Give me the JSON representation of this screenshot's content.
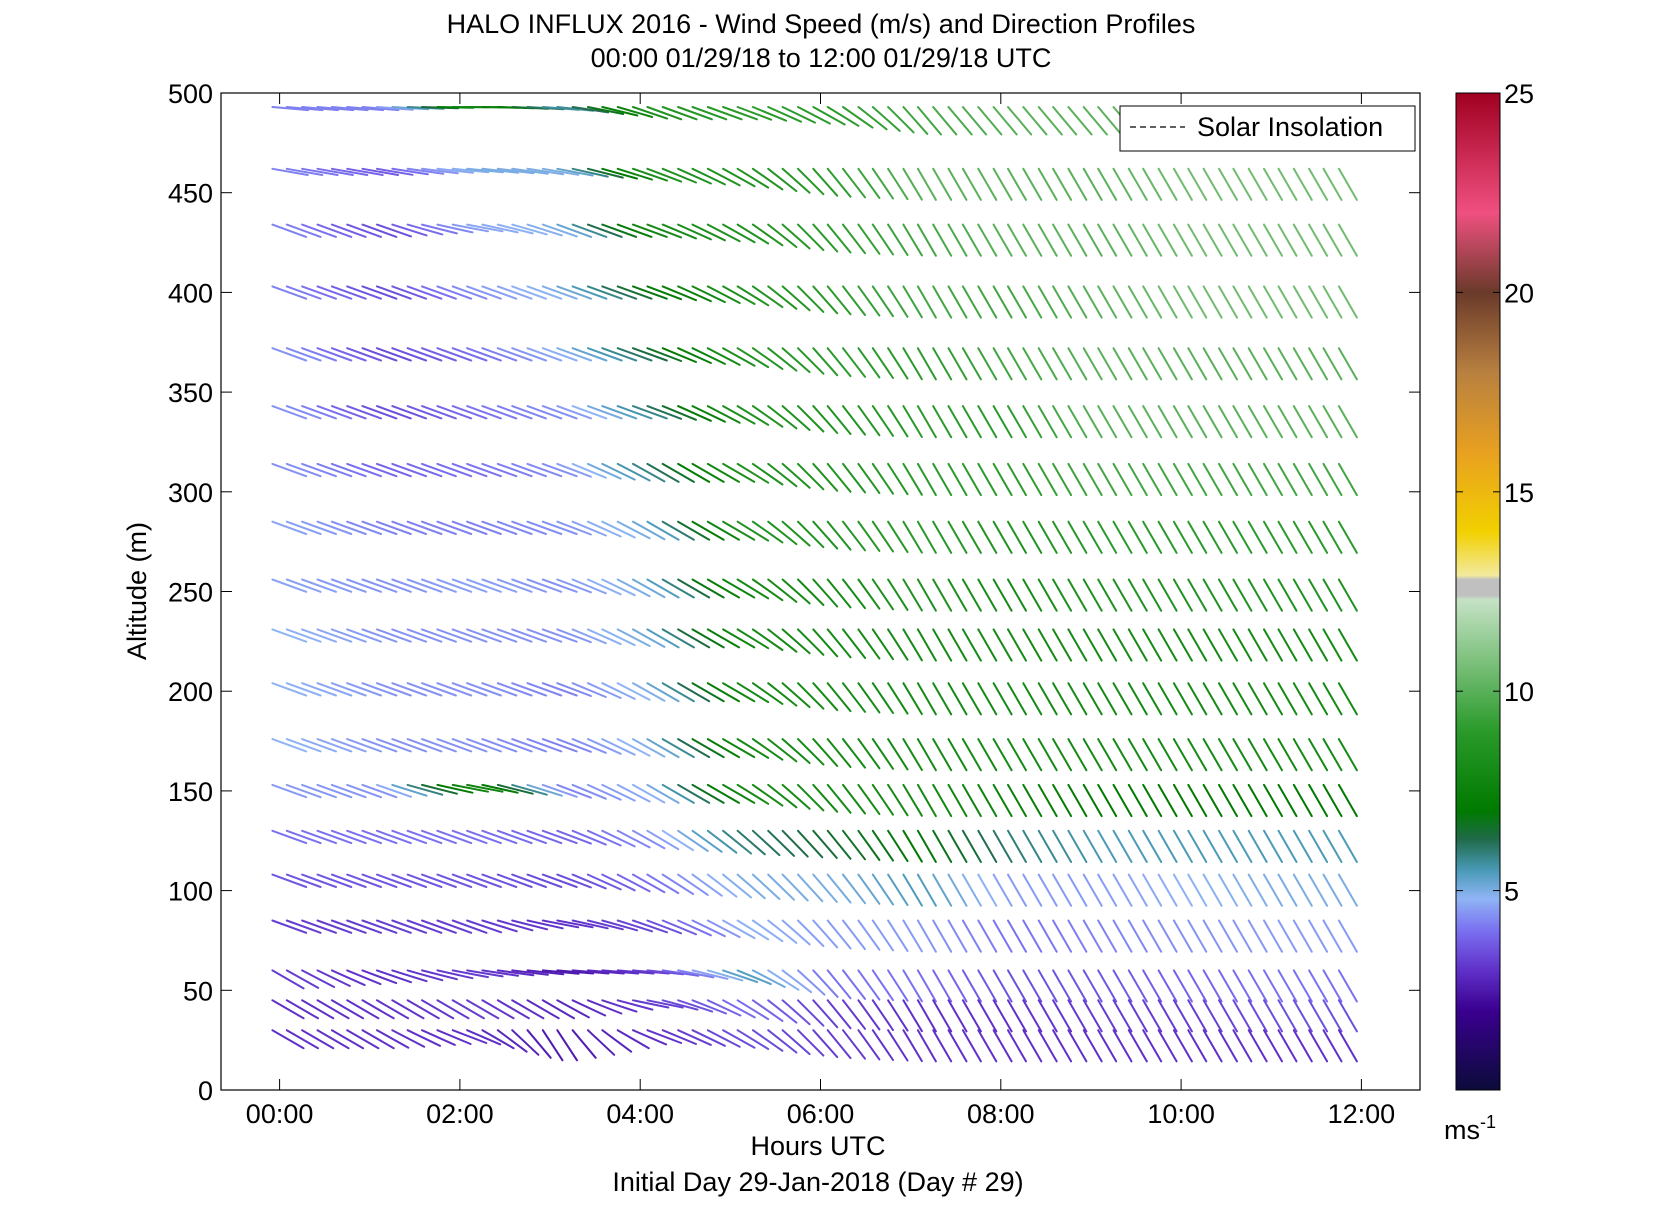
{
  "chart_data": {
    "type": "quiver",
    "title": "HALO INFLUX 2016 - Wind Speed (m/s) and Direction Profiles",
    "subtitle": "00:00 01/29/18 to 12:00 01/29/18  UTC",
    "xlabel": "Hours UTC",
    "xlabel_sub": "Initial Day 29-Jan-2018 (Day # 29)",
    "ylabel": "Altitude (m)",
    "xlim": [
      -0.65,
      12.65
    ],
    "ylim": [
      0,
      500
    ],
    "x_ticks": [
      0,
      2,
      4,
      6,
      8,
      10,
      12
    ],
    "x_tick_labels": [
      "00:00",
      "02:00",
      "04:00",
      "06:00",
      "08:00",
      "10:00",
      "12:00"
    ],
    "y_ticks": [
      0,
      50,
      100,
      150,
      200,
      250,
      300,
      350,
      400,
      450,
      500
    ],
    "y_tick_labels": [
      "0",
      "50",
      "100",
      "150",
      "200",
      "250",
      "300",
      "350",
      "400",
      "450",
      "500"
    ],
    "legend": {
      "entries": [
        "Solar Insolation"
      ],
      "line_style": "dashed",
      "placement": "top-right"
    },
    "colorbar": {
      "range": [
        0,
        25
      ],
      "ticks": [
        5,
        10,
        15,
        20,
        25
      ],
      "tick_labels": [
        "5",
        "10",
        "15",
        "20",
        "25"
      ],
      "unit_base": "ms",
      "unit_exp": "-1",
      "colors": [
        {
          "v": 0,
          "c": "#0b0b3a"
        },
        {
          "v": 2,
          "c": "#3a0090"
        },
        {
          "v": 3,
          "c": "#6030c8"
        },
        {
          "v": 4,
          "c": "#7a70f0"
        },
        {
          "v": 4.8,
          "c": "#8fb4f4"
        },
        {
          "v": 5.5,
          "c": "#4a9ab8"
        },
        {
          "v": 6.3,
          "c": "#1f6a48"
        },
        {
          "v": 7,
          "c": "#007a00"
        },
        {
          "v": 9,
          "c": "#2a9a2a"
        },
        {
          "v": 11,
          "c": "#88c688"
        },
        {
          "v": 12.3,
          "c": "#c6e2c6"
        },
        {
          "v": 12.4,
          "c": "#c0c0c0"
        },
        {
          "v": 12.8,
          "c": "#c0c0c0"
        },
        {
          "v": 12.9,
          "c": "#f2ea9e"
        },
        {
          "v": 14,
          "c": "#f2d000"
        },
        {
          "v": 16,
          "c": "#e8a020"
        },
        {
          "v": 18,
          "c": "#b88040"
        },
        {
          "v": 20,
          "c": "#6a3a2a"
        },
        {
          "v": 22,
          "c": "#f05080"
        },
        {
          "v": 25,
          "c": "#a00020"
        }
      ]
    },
    "grid": false,
    "times": [
      -0.08,
      0.08,
      0.25,
      0.42,
      0.58,
      0.75,
      0.92,
      1.08,
      1.25,
      1.42,
      1.58,
      1.75,
      1.92,
      2.08,
      2.25,
      2.42,
      2.58,
      2.75,
      2.92,
      3.08,
      3.25,
      3.42,
      3.58,
      3.75,
      3.92,
      4.08,
      4.25,
      4.42,
      4.58,
      4.75,
      4.92,
      5.08,
      5.25,
      5.42,
      5.58,
      5.75,
      5.92,
      6.08,
      6.25,
      6.42,
      6.58,
      6.75,
      6.92,
      7.08,
      7.25,
      7.42,
      7.58,
      7.75,
      7.92,
      8.08,
      8.25,
      8.42,
      8.58,
      8.75,
      8.92,
      9.08,
      9.25,
      9.42,
      9.58,
      9.75,
      9.92,
      10.08,
      10.25,
      10.42,
      10.58,
      10.75,
      10.92,
      11.08,
      11.25,
      11.42,
      11.58,
      11.75
    ],
    "altitudes": [
      30,
      45,
      60,
      85,
      108,
      130,
      153,
      176,
      204,
      231,
      256,
      285,
      314,
      343,
      372,
      403,
      434,
      462,
      493
    ],
    "series": [
      {
        "time_hours": 0,
        "direction_deg": [
          300,
          300,
          300,
          290,
          290,
          290,
          290,
          290,
          290,
          290,
          290,
          290,
          290,
          290,
          290,
          290,
          290,
          280,
          275
        ],
        "speed_ms": [
          3,
          3,
          3.2,
          3.2,
          3.6,
          4,
          4.5,
          4.8,
          4.8,
          4.8,
          4.6,
          4.6,
          4.4,
          4.4,
          4.4,
          4.2,
          4.2,
          4.2,
          4.2
        ]
      },
      {
        "time_hours": 1,
        "direction_deg": [
          300,
          300,
          290,
          290,
          290,
          290,
          290,
          290,
          290,
          290,
          290,
          290,
          290,
          290,
          290,
          290,
          290,
          280,
          275
        ],
        "speed_ms": [
          3,
          3,
          3,
          3.2,
          3.6,
          4,
          4.4,
          4.4,
          4.4,
          4.4,
          4.4,
          4.2,
          3.8,
          3.4,
          3.4,
          3.4,
          3.4,
          3.6,
          4.2
        ]
      },
      {
        "time_hours": 2,
        "direction_deg": [
          290,
          300,
          280,
          290,
          290,
          290,
          280,
          290,
          290,
          290,
          290,
          290,
          290,
          290,
          290,
          290,
          280,
          275,
          270
        ],
        "speed_ms": [
          3,
          3.2,
          3.2,
          3.2,
          3.6,
          4,
          8,
          4.4,
          4.4,
          4.4,
          4.6,
          4.2,
          4,
          4,
          4,
          4.4,
          4.6,
          5,
          8
        ]
      },
      {
        "time_hours": 3,
        "direction_deg": [
          330,
          300,
          275,
          280,
          290,
          290,
          290,
          290,
          290,
          290,
          290,
          290,
          290,
          290,
          290,
          290,
          290,
          280,
          275
        ],
        "speed_ms": [
          2.5,
          2.8,
          2.5,
          3,
          3.4,
          3.8,
          4.2,
          4.2,
          4.2,
          4.4,
          4.4,
          4.4,
          4.4,
          4.4,
          4.8,
          5,
          5,
          5,
          5.5
        ]
      },
      {
        "time_hours": 4,
        "direction_deg": [
          290,
          280,
          275,
          290,
          300,
          300,
          300,
          300,
          300,
          300,
          300,
          300,
          300,
          290,
          290,
          290,
          290,
          290,
          290
        ],
        "speed_ms": [
          3,
          3.2,
          3.2,
          3.4,
          4,
          4.4,
          4.8,
          5,
          5,
          5.2,
          5.2,
          5.2,
          6,
          6,
          6.5,
          7,
          8,
          8.5,
          8.5
        ]
      },
      {
        "time_hours": 5,
        "direction_deg": [
          300,
          300,
          290,
          300,
          310,
          310,
          300,
          300,
          300,
          300,
          300,
          300,
          300,
          300,
          300,
          300,
          300,
          300,
          290
        ],
        "speed_ms": [
          3.5,
          4,
          5.5,
          4.8,
          5,
          6,
          8,
          8,
          8,
          8,
          8,
          8.5,
          8.5,
          8.5,
          8.5,
          8.5,
          8.5,
          8.5,
          9
        ]
      },
      {
        "time_hours": 6,
        "direction_deg": [
          320,
          320,
          320,
          320,
          320,
          320,
          320,
          320,
          320,
          320,
          320,
          320,
          320,
          320,
          320,
          320,
          320,
          320,
          300
        ],
        "speed_ms": [
          3.2,
          3.2,
          4,
          4.5,
          5,
          6.5,
          8,
          8,
          8,
          8,
          8,
          8.5,
          8.5,
          8.5,
          9,
          9,
          9,
          9,
          9
        ]
      },
      {
        "time_hours": 7,
        "direction_deg": [
          330,
          330,
          330,
          330,
          330,
          330,
          330,
          330,
          330,
          330,
          330,
          330,
          330,
          330,
          330,
          330,
          330,
          330,
          320
        ],
        "speed_ms": [
          3,
          3,
          4,
          4.5,
          5.5,
          7,
          8,
          8,
          8,
          8,
          8.5,
          9,
          9,
          9,
          9,
          9.5,
          9.5,
          10,
          9.5
        ]
      },
      {
        "time_hours": 8,
        "direction_deg": [
          330,
          330,
          330,
          330,
          330,
          330,
          330,
          330,
          330,
          330,
          330,
          330,
          330,
          330,
          330,
          330,
          330,
          330,
          320
        ],
        "speed_ms": [
          3,
          3,
          3.5,
          4,
          4.5,
          6,
          7.5,
          8,
          8,
          8,
          8,
          8.5,
          9,
          9,
          9.5,
          9.5,
          10,
          10,
          10
        ]
      },
      {
        "time_hours": 9,
        "direction_deg": [
          330,
          330,
          330,
          330,
          330,
          330,
          330,
          330,
          330,
          330,
          330,
          330,
          330,
          330,
          330,
          330,
          330,
          330,
          320
        ],
        "speed_ms": [
          3,
          3.2,
          3.6,
          4.2,
          4.5,
          5.5,
          7,
          8,
          8,
          8,
          8.5,
          9,
          9.5,
          10,
          10,
          10,
          10,
          10,
          10
        ]
      },
      {
        "time_hours": 10,
        "direction_deg": [
          330,
          330,
          330,
          330,
          330,
          330,
          330,
          330,
          330,
          330,
          330,
          330,
          330,
          330,
          330,
          330,
          330,
          330,
          320
        ],
        "speed_ms": [
          3,
          3.2,
          3.8,
          4.4,
          4.8,
          5.5,
          7,
          8,
          8,
          8,
          8.5,
          9,
          9.5,
          10,
          10,
          10.5,
          10.5,
          10.5,
          10.5
        ]
      },
      {
        "time_hours": 11,
        "direction_deg": [
          330,
          330,
          330,
          330,
          330,
          330,
          330,
          330,
          330,
          330,
          330,
          330,
          330,
          330,
          330,
          330,
          330,
          330,
          320
        ],
        "speed_ms": [
          3,
          3.5,
          4,
          4.5,
          5,
          5.5,
          7,
          8,
          8,
          8,
          8.5,
          9,
          9.5,
          10,
          10,
          10.5,
          10.5,
          10.5,
          10.5
        ]
      }
    ]
  }
}
